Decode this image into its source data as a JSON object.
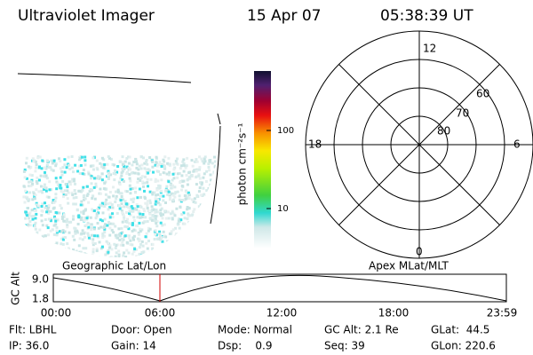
{
  "header": {
    "title": "Ultraviolet Imager",
    "date": "15 Apr 07",
    "time": "05:38:39 UT"
  },
  "colorbar": {
    "label": "photon cm⁻²s⁻¹",
    "ticks": [
      "100",
      "10"
    ]
  },
  "polar": {
    "mlt_labels": [
      "12",
      "18",
      "6",
      "0"
    ],
    "lat_labels": [
      "60",
      "70",
      "80"
    ]
  },
  "strip": {
    "left_label": "Geographic Lat/Lon",
    "right_label": "Apex MLat/MLT",
    "y_label": "GC Alt",
    "yticks": [
      "9.0",
      "1.8"
    ],
    "xticks": [
      "00:00",
      "06:00",
      "12:00",
      "18:00",
      "23:59"
    ]
  },
  "info": {
    "rows": [
      [
        "Flt: LBHL",
        "Door: Open",
        "Mode: Normal",
        "GC Alt: 2.1 Re",
        "GLat:  44.5"
      ],
      [
        "IP: 36.0",
        "Gain: 14",
        "Dsp:    0.9",
        "Seq: 39",
        "GLon: 220.6"
      ]
    ]
  }
}
